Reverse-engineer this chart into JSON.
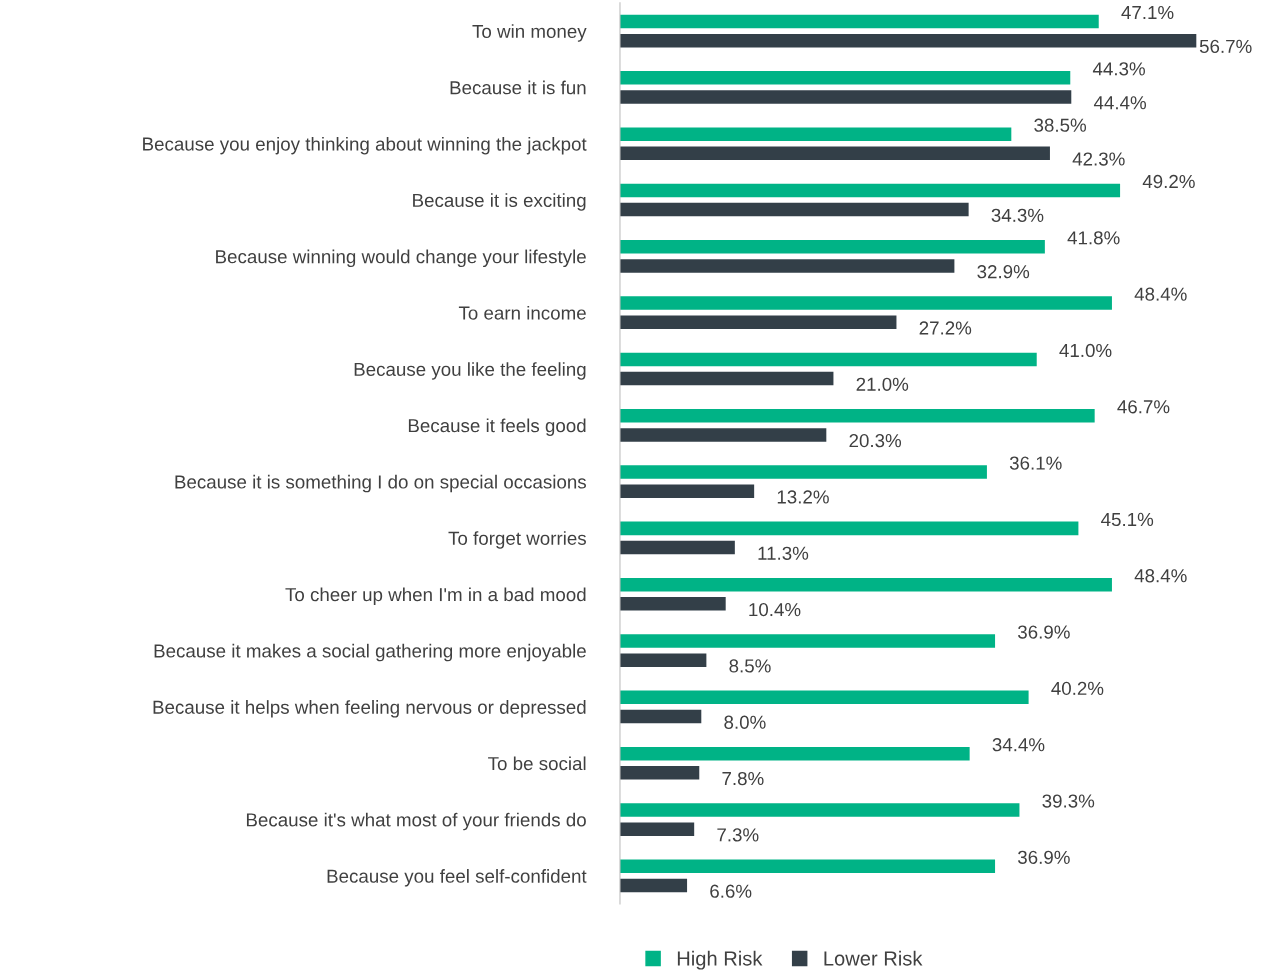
{
  "chart_data": {
    "type": "bar",
    "orientation": "horizontal",
    "data_labels": true,
    "legend": "bottom",
    "grid": false,
    "categories": [
      "To win money",
      "Because it is fun",
      "Because you enjoy thinking about winning the jackpot",
      "Because it is exciting",
      "Because winning would change your lifestyle",
      "To earn income",
      "Because you like the feeling",
      "Because it feels good",
      "Because it is something I do on special occasions",
      "To forget worries",
      "To cheer up when I'm in a bad mood",
      "Because it makes a social gathering more enjoyable",
      "Because it helps when feeling nervous or depressed",
      "To be social",
      "Because it's what most of your friends do",
      "Because you feel self-confident"
    ],
    "series": [
      {
        "name": "High Risk",
        "color": "#00b386",
        "values": [
          47.1,
          44.3,
          38.5,
          49.2,
          41.8,
          48.4,
          41.0,
          46.7,
          36.1,
          45.1,
          48.4,
          36.9,
          40.2,
          34.4,
          39.3,
          36.9
        ],
        "value_labels": [
          "47.1%",
          "44.3%",
          "38.5%",
          "49.2%",
          "41.8%",
          "48.4%",
          "41.0%",
          "46.7%",
          "36.1%",
          "45.1%",
          "48.4%",
          "36.9%",
          "40.2%",
          "34.4%",
          "39.3%",
          "36.9%"
        ]
      },
      {
        "name": "Lower Risk",
        "color": "#333f48",
        "values": [
          56.7,
          44.4,
          42.3,
          34.3,
          32.9,
          27.2,
          21.0,
          20.3,
          13.2,
          11.3,
          10.4,
          8.5,
          8.0,
          7.8,
          7.3,
          6.6
        ],
        "value_labels": [
          "56.7%",
          "44.4%",
          "42.3%",
          "34.3%",
          "32.9%",
          "27.2%",
          "21.0%",
          "20.3%",
          "13.2%",
          "11.3%",
          "10.4%",
          "8.5%",
          "8.0%",
          "7.8%",
          "7.3%",
          "6.6%"
        ]
      }
    ]
  }
}
